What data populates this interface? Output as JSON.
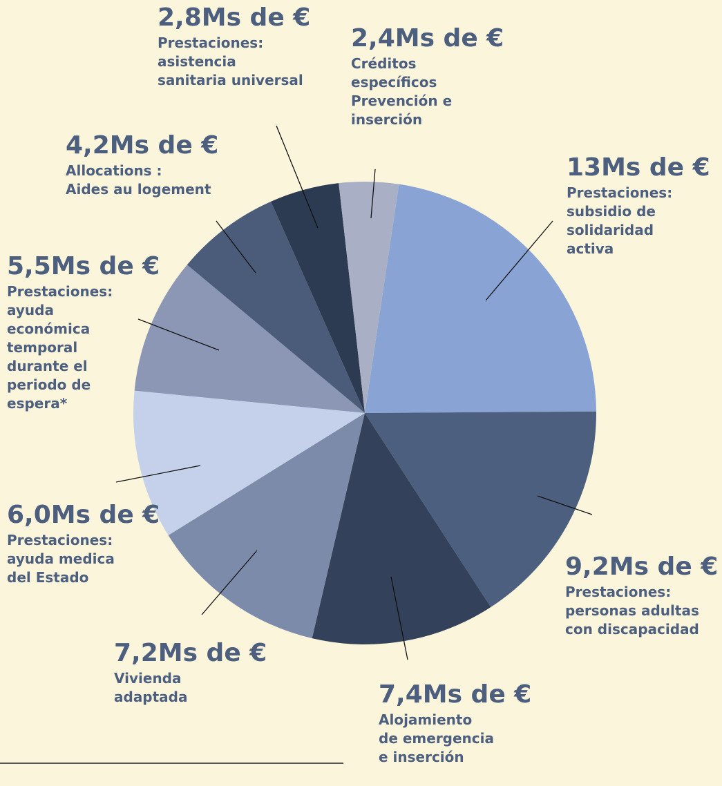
{
  "chart_data": {
    "type": "pie",
    "categories": [
      "Prestaciones:\nsubsidio de\nsolidaridad\nactiva",
      "Prestaciones:\npersonas adultas\ncon discapacidad",
      "Alojamiento\nde emergencia\ne inserción",
      "Vivienda\nadaptada",
      "Prestaciones:\nayuda medica\ndel Estado",
      "Prestaciones:\nayuda\neconómica\ntemporal\ndurante el\nperiodo de\nespera*",
      "Allocations :\nAides au logement",
      "Prestaciones:\nasistencia\nsanitaria universal",
      "Créditos\nespecíficos\nPrevención e\ninserción"
    ],
    "values": [
      13,
      9.2,
      7.4,
      7.2,
      6.0,
      5.5,
      4.2,
      2.8,
      2.4
    ],
    "value_labels": [
      "13Ms de €",
      "9,2Ms de €",
      "7,4Ms de €",
      "7,2Ms de €",
      "6,0Ms de €",
      "5,5Ms de €",
      "4,2Ms de €",
      "2,8Ms de €",
      "2,4Ms de €"
    ],
    "colors": [
      "#88a3d4",
      "#4d5f7e",
      "#33425a",
      "#7d8bab",
      "#c5d1eb",
      "#8c97b5",
      "#4b5c7b",
      "#2c3a52",
      "#a9b0c6"
    ]
  }
}
